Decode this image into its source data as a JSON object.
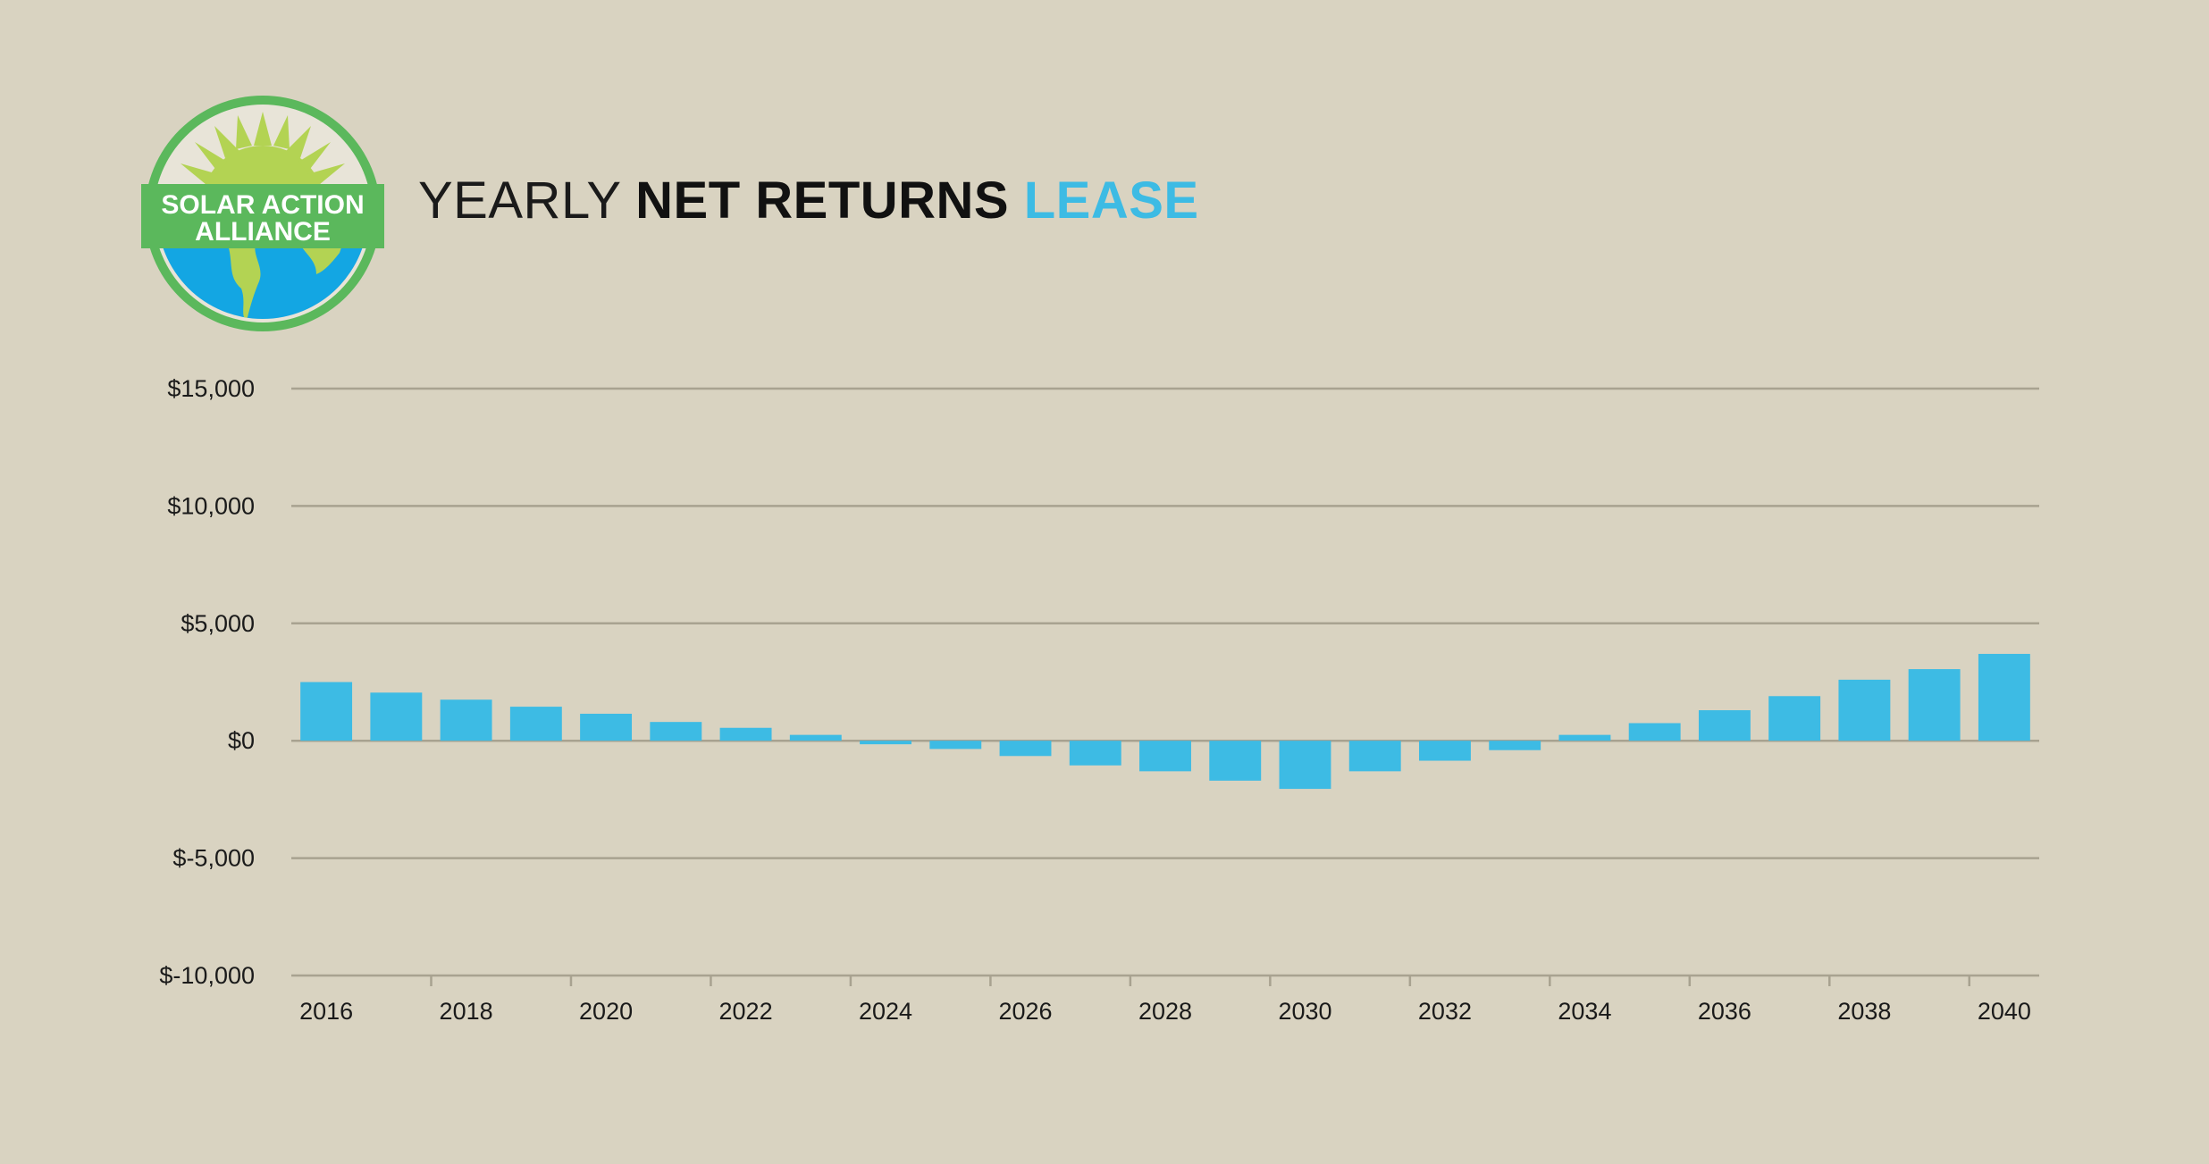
{
  "logo": {
    "line1": "SOLAR ACTION",
    "line2": "ALLIANCE",
    "colors": {
      "ring": "#5bb85c",
      "sun": "#b3d353",
      "ocean": "#13a6e3",
      "land": "#b3d353"
    }
  },
  "title": {
    "part1": "YEARLY ",
    "part2": "NET RETURNS ",
    "part3": "LEASE"
  },
  "colors": {
    "background": "#d9d3c1",
    "bar": "#3dbbe4",
    "grid": "#a8a290",
    "accent": "#3dbbe4"
  },
  "chart_data": {
    "type": "bar",
    "title": "YEARLY NET RETURNS LEASE",
    "xlabel": "",
    "ylabel": "",
    "ylim": [
      -10000,
      15000
    ],
    "grid": true,
    "yticks": [
      15000,
      10000,
      5000,
      0,
      -5000,
      -10000
    ],
    "yticklabels": [
      "$15,000",
      "$10,000",
      "$5,000",
      "$0",
      "$-5,000",
      "$-10,000"
    ],
    "xticklabels": [
      "2016",
      "2018",
      "2020",
      "2022",
      "2024",
      "2026",
      "2028",
      "2030",
      "2032",
      "2034",
      "2036",
      "2038",
      "2040"
    ],
    "categories": [
      2016,
      2017,
      2018,
      2019,
      2020,
      2021,
      2022,
      2023,
      2024,
      2025,
      2026,
      2027,
      2028,
      2029,
      2030,
      2031,
      2032,
      2033,
      2034,
      2035,
      2036,
      2037,
      2038,
      2039,
      2040
    ],
    "values": [
      2500,
      2050,
      1750,
      1450,
      1150,
      800,
      550,
      250,
      -150,
      -350,
      -650,
      -1050,
      -1300,
      -1700,
      -2050,
      -1300,
      -850,
      -400,
      250,
      750,
      1300,
      1900,
      2600,
      3050,
      3700
    ]
  }
}
